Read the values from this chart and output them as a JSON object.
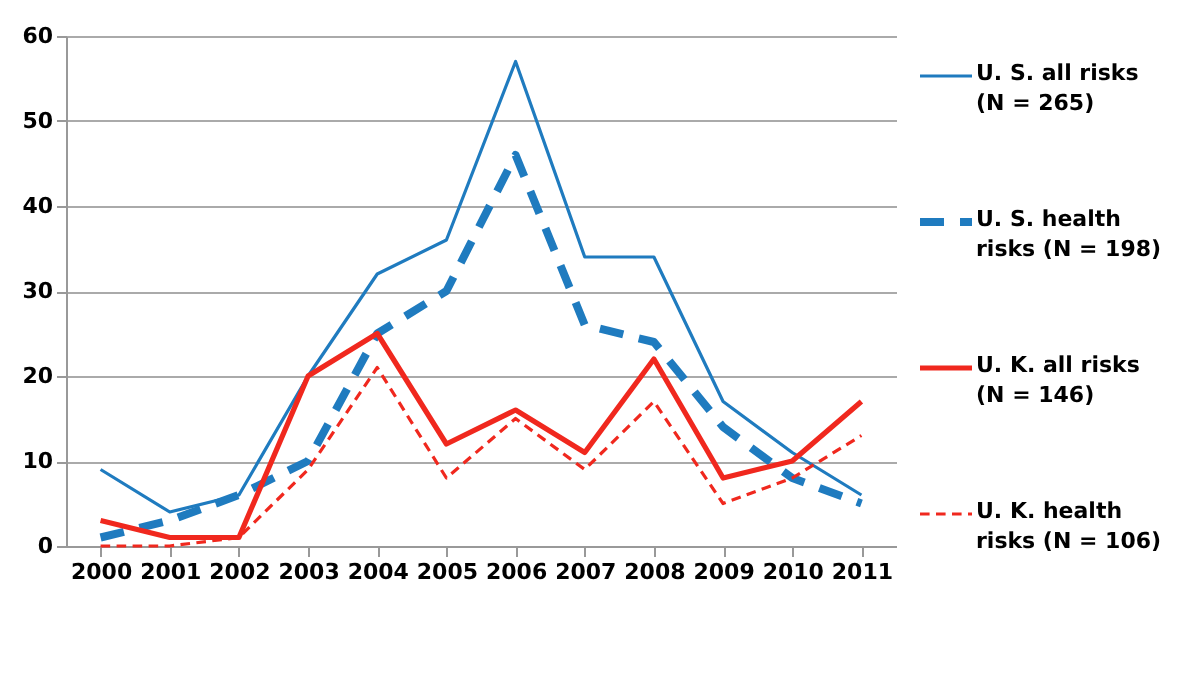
{
  "chart_data": {
    "type": "line",
    "categories": [
      "2000",
      "2001",
      "2002",
      "2003",
      "2004",
      "2005",
      "2006",
      "2007",
      "2008",
      "2009",
      "2010",
      "2011"
    ],
    "series": [
      {
        "name": "U. S. all risks (N = 265)",
        "color": "#1f7bbf",
        "line_style": "solid",
        "values": [
          9,
          4,
          6,
          20,
          32,
          36,
          57,
          34,
          34,
          17,
          11,
          6
        ]
      },
      {
        "name": "U. S. health risks (N = 198)",
        "color": "#1f7bbf",
        "line_style": "dashed",
        "values": [
          1,
          3,
          6,
          10,
          25,
          30,
          46,
          26,
          24,
          14,
          8,
          5
        ]
      },
      {
        "name": "U. K. all risks (N = 146)",
        "color": "#f0281e",
        "line_style": "solid",
        "values": [
          3,
          1,
          1,
          20,
          25,
          12,
          16,
          11,
          22,
          8,
          10,
          17
        ]
      },
      {
        "name": "U. K. health risks (N = 106)",
        "color": "#f0281e",
        "line_style": "dashed",
        "values": [
          0,
          0,
          1,
          9,
          21,
          8,
          15,
          9,
          17,
          5,
          8,
          13
        ]
      }
    ],
    "ylim": [
      0,
      60
    ],
    "yticks": [
      0,
      10,
      20,
      30,
      40,
      50,
      60
    ],
    "grid": "y",
    "legend": "right",
    "marker": "none"
  }
}
